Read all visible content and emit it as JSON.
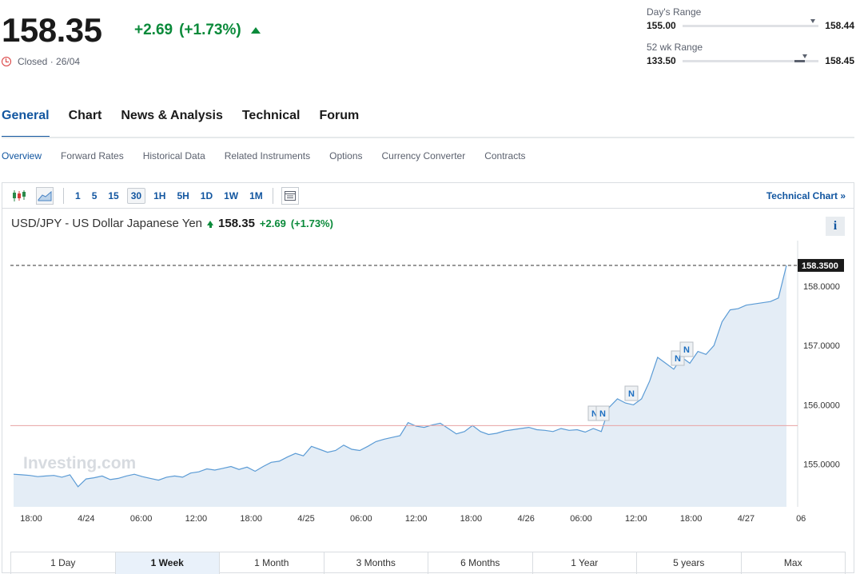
{
  "quote": {
    "price": "158.35",
    "change": "+2.69",
    "change_pct": "(+1.73%)",
    "status": "Closed · 26/04",
    "color_up": "#0a8a3a"
  },
  "ranges": {
    "day": {
      "label": "Day's Range",
      "low": "155.00",
      "high": "158.44",
      "position": 0.96
    },
    "week52": {
      "label": "52 wk Range",
      "low": "133.50",
      "high": "158.45",
      "position": 0.9
    }
  },
  "main_tabs": [
    "General",
    "Chart",
    "News & Analysis",
    "Technical",
    "Forum"
  ],
  "sub_tabs": [
    "Overview",
    "Forward Rates",
    "Historical Data",
    "Related Instruments",
    "Options",
    "Currency Converter",
    "Contracts"
  ],
  "toolbar": {
    "timeframes": [
      "1",
      "5",
      "15",
      "30",
      "1H",
      "5H",
      "1D",
      "1W",
      "1M"
    ],
    "active_timeframe": "30",
    "technical_chart": "Technical Chart »"
  },
  "chart_header": {
    "name": "USD/JPY - US Dollar Japanese Yen",
    "price": "158.35",
    "change": "+2.69",
    "change_pct": "(+1.73%)",
    "info": "i"
  },
  "chart_data": {
    "type": "area",
    "watermark": "Investing.com",
    "x_tick_labels": [
      "18:00",
      "4/24",
      "06:00",
      "12:00",
      "18:00",
      "4/25",
      "06:00",
      "12:00",
      "18:00",
      "4/26",
      "06:00",
      "12:00",
      "18:00",
      "4/27",
      "06"
    ],
    "y_tick_labels": [
      "158.0000",
      "157.0000",
      "156.0000",
      "155.0000"
    ],
    "ylim": [
      154.28,
      158.7
    ],
    "last_price_label": "158.3500",
    "last_price": 158.35,
    "reference_line": 155.65,
    "news_markers": [
      "N",
      "N",
      "N",
      "N",
      "N"
    ],
    "values": [
      154.83,
      154.82,
      154.81,
      154.79,
      154.8,
      154.81,
      154.78,
      154.82,
      154.62,
      154.75,
      154.77,
      154.8,
      154.74,
      154.76,
      154.8,
      154.83,
      154.79,
      154.76,
      154.73,
      154.78,
      154.8,
      154.78,
      154.85,
      154.87,
      154.92,
      154.9,
      154.93,
      154.96,
      154.91,
      154.95,
      154.88,
      154.96,
      155.03,
      155.05,
      155.12,
      155.18,
      155.14,
      155.3,
      155.25,
      155.2,
      155.23,
      155.32,
      155.25,
      155.23,
      155.3,
      155.38,
      155.42,
      155.45,
      155.48,
      155.7,
      155.64,
      155.62,
      155.66,
      155.69,
      155.6,
      155.51,
      155.55,
      155.65,
      155.55,
      155.5,
      155.52,
      155.56,
      155.58,
      155.6,
      155.62,
      155.58,
      155.57,
      155.55,
      155.6,
      155.57,
      155.58,
      155.54,
      155.6,
      155.55,
      155.96,
      156.1,
      156.03,
      156.0,
      156.1,
      156.4,
      156.8,
      156.7,
      156.6,
      156.8,
      156.7,
      156.9,
      156.85,
      157.0,
      157.4,
      157.6,
      157.62,
      157.68,
      157.7,
      157.72,
      157.74,
      157.8,
      158.35
    ]
  },
  "periods": [
    "1 Day",
    "1 Week",
    "1 Month",
    "3 Months",
    "6 Months",
    "1 Year",
    "5 years",
    "Max"
  ],
  "active_period": "1 Week"
}
